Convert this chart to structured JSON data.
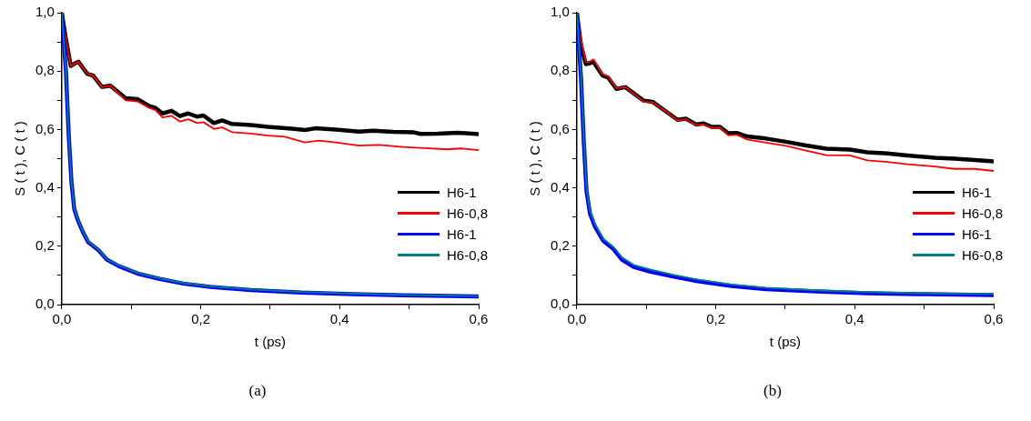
{
  "chart_data": [
    {
      "type": "line",
      "xlabel": "t (ps)",
      "ylabel": "S ( t ), C ( t )",
      "annotations": [
        "(a)"
      ],
      "xlim": [
        0,
        0.6
      ],
      "ylim": [
        0,
        1
      ],
      "xticks": [
        {
          "value": 0,
          "label": "0,0"
        },
        {
          "value": 0.1,
          "label": null
        },
        {
          "value": 0.2,
          "label": "0,2"
        },
        {
          "value": 0.3,
          "label": null
        },
        {
          "value": 0.4,
          "label": "0,4"
        },
        {
          "value": 0.5,
          "label": null
        },
        {
          "value": 0.6,
          "label": "0,6"
        }
      ],
      "yticks": [
        {
          "value": 0,
          "label": "0,0"
        },
        {
          "value": 0.1,
          "label": null
        },
        {
          "value": 0.2,
          "label": "0,2"
        },
        {
          "value": 0.3,
          "label": null
        },
        {
          "value": 0.4,
          "label": "0,4"
        },
        {
          "value": 0.5,
          "label": null
        },
        {
          "value": 0.6,
          "label": "0,6"
        },
        {
          "value": 0.7,
          "label": null
        },
        {
          "value": 0.8,
          "label": "0,8"
        },
        {
          "value": 0.9,
          "label": null
        },
        {
          "value": 1,
          "label": "1,0"
        }
      ],
      "grid": false,
      "legend": "right",
      "marker": "none",
      "line_style": "solid",
      "series": [
        {
          "name": "H6-1",
          "color": "#000000",
          "x": [
            0,
            0.006,
            0.013,
            0.019,
            0.024,
            0.037,
            0.045,
            0.058,
            0.07,
            0.092,
            0.109,
            0.126,
            0.135,
            0.145,
            0.158,
            0.17,
            0.182,
            0.195,
            0.204,
            0.219,
            0.231,
            0.245,
            0.272,
            0.297,
            0.331,
            0.35,
            0.365,
            0.394,
            0.428,
            0.448,
            0.477,
            0.507,
            0.516,
            0.541,
            0.57,
            0.6
          ],
          "values": [
            1.0,
            0.91,
            0.818,
            0.826,
            0.832,
            0.79,
            0.785,
            0.746,
            0.75,
            0.707,
            0.704,
            0.68,
            0.674,
            0.655,
            0.664,
            0.646,
            0.655,
            0.644,
            0.648,
            0.622,
            0.631,
            0.619,
            0.615,
            0.609,
            0.603,
            0.598,
            0.604,
            0.6,
            0.593,
            0.596,
            0.592,
            0.59,
            0.585,
            0.586,
            0.589,
            0.584
          ]
        },
        {
          "name": "H6-0,8",
          "color": "#ff0000",
          "x": [
            0,
            0.006,
            0.013,
            0.019,
            0.024,
            0.037,
            0.045,
            0.058,
            0.07,
            0.092,
            0.109,
            0.126,
            0.135,
            0.145,
            0.158,
            0.17,
            0.182,
            0.195,
            0.204,
            0.219,
            0.231,
            0.245,
            0.272,
            0.297,
            0.321,
            0.35,
            0.37,
            0.394,
            0.428,
            0.457,
            0.491,
            0.516,
            0.555,
            0.575,
            0.6
          ],
          "values": [
            1.0,
            0.91,
            0.818,
            0.826,
            0.832,
            0.79,
            0.785,
            0.745,
            0.75,
            0.7,
            0.696,
            0.674,
            0.666,
            0.641,
            0.647,
            0.627,
            0.635,
            0.622,
            0.625,
            0.602,
            0.607,
            0.591,
            0.586,
            0.579,
            0.575,
            0.556,
            0.562,
            0.556,
            0.545,
            0.547,
            0.54,
            0.537,
            0.532,
            0.535,
            0.529
          ]
        },
        {
          "name": "H6-1",
          "color": "#0000ff",
          "x": [
            0,
            0.006,
            0.01,
            0.014,
            0.018,
            0.023,
            0.031,
            0.038,
            0.053,
            0.065,
            0.082,
            0.097,
            0.111,
            0.141,
            0.175,
            0.214,
            0.272,
            0.345,
            0.419,
            0.492,
            0.6
          ],
          "values": [
            1.0,
            0.8,
            0.584,
            0.42,
            0.328,
            0.29,
            0.246,
            0.214,
            0.186,
            0.154,
            0.132,
            0.118,
            0.105,
            0.088,
            0.072,
            0.061,
            0.05,
            0.041,
            0.036,
            0.032,
            0.028
          ]
        },
        {
          "name": "H6-0,8",
          "color": "#008080",
          "x": [
            0,
            0.006,
            0.01,
            0.014,
            0.018,
            0.023,
            0.031,
            0.038,
            0.053,
            0.065,
            0.082,
            0.097,
            0.111,
            0.141,
            0.175,
            0.214,
            0.272,
            0.345,
            0.419,
            0.492,
            0.6
          ],
          "values": [
            1.0,
            0.8,
            0.586,
            0.422,
            0.33,
            0.292,
            0.248,
            0.216,
            0.188,
            0.156,
            0.134,
            0.12,
            0.107,
            0.09,
            0.074,
            0.063,
            0.052,
            0.043,
            0.038,
            0.033,
            0.029
          ]
        }
      ]
    },
    {
      "type": "line",
      "xlabel": "t (ps)",
      "ylabel": "S ( t ), C ( t )",
      "annotations": [
        "(b)"
      ],
      "xlim": [
        0,
        0.6
      ],
      "ylim": [
        0,
        1
      ],
      "xticks": [
        {
          "value": 0,
          "label": "0,0"
        },
        {
          "value": 0.1,
          "label": null
        },
        {
          "value": 0.2,
          "label": "0,2"
        },
        {
          "value": 0.3,
          "label": null
        },
        {
          "value": 0.4,
          "label": "0,4"
        },
        {
          "value": 0.5,
          "label": null
        },
        {
          "value": 0.6,
          "label": "0,6"
        }
      ],
      "yticks": [
        {
          "value": 0,
          "label": "0,0"
        },
        {
          "value": 0.1,
          "label": null
        },
        {
          "value": 0.2,
          "label": "0,2"
        },
        {
          "value": 0.3,
          "label": null
        },
        {
          "value": 0.4,
          "label": "0,4"
        },
        {
          "value": 0.5,
          "label": null
        },
        {
          "value": 0.6,
          "label": "0,6"
        },
        {
          "value": 0.7,
          "label": null
        },
        {
          "value": 0.8,
          "label": "0,8"
        },
        {
          "value": 0.9,
          "label": null
        },
        {
          "value": 1,
          "label": "1,0"
        }
      ],
      "grid": false,
      "legend": "right",
      "marker": "none",
      "line_style": "solid",
      "series": [
        {
          "name": "H6-1",
          "color": "#000000",
          "x": [
            0,
            0.006,
            0.013,
            0.018,
            0.024,
            0.037,
            0.045,
            0.057,
            0.07,
            0.096,
            0.109,
            0.126,
            0.145,
            0.157,
            0.172,
            0.182,
            0.194,
            0.206,
            0.218,
            0.23,
            0.245,
            0.272,
            0.301,
            0.33,
            0.359,
            0.393,
            0.418,
            0.447,
            0.476,
            0.515,
            0.544,
            0.573,
            0.6
          ],
          "values": [
            1.0,
            0.889,
            0.824,
            0.826,
            0.832,
            0.785,
            0.778,
            0.739,
            0.745,
            0.699,
            0.695,
            0.666,
            0.633,
            0.637,
            0.617,
            0.621,
            0.609,
            0.609,
            0.587,
            0.588,
            0.576,
            0.569,
            0.558,
            0.545,
            0.534,
            0.531,
            0.522,
            0.518,
            0.511,
            0.503,
            0.5,
            0.495,
            0.491
          ]
        },
        {
          "name": "H6-0,8",
          "color": "#ff0000",
          "x": [
            0,
            0.006,
            0.013,
            0.018,
            0.024,
            0.037,
            0.045,
            0.057,
            0.07,
            0.096,
            0.109,
            0.126,
            0.145,
            0.157,
            0.172,
            0.182,
            0.194,
            0.206,
            0.218,
            0.23,
            0.245,
            0.272,
            0.301,
            0.33,
            0.359,
            0.393,
            0.418,
            0.447,
            0.476,
            0.515,
            0.544,
            0.573,
            0.6
          ],
          "values": [
            1.0,
            0.91,
            0.832,
            0.832,
            0.84,
            0.79,
            0.782,
            0.742,
            0.745,
            0.695,
            0.693,
            0.666,
            0.631,
            0.635,
            0.614,
            0.617,
            0.605,
            0.607,
            0.58,
            0.582,
            0.566,
            0.555,
            0.544,
            0.528,
            0.512,
            0.511,
            0.494,
            0.489,
            0.481,
            0.473,
            0.465,
            0.465,
            0.458
          ]
        },
        {
          "name": "H6-1",
          "color": "#0000ff",
          "x": [
            0,
            0.006,
            0.01,
            0.014,
            0.019,
            0.026,
            0.038,
            0.053,
            0.065,
            0.082,
            0.106,
            0.14,
            0.174,
            0.223,
            0.272,
            0.345,
            0.418,
            0.491,
            0.6
          ],
          "values": [
            1.0,
            0.78,
            0.562,
            0.388,
            0.312,
            0.268,
            0.219,
            0.19,
            0.154,
            0.129,
            0.113,
            0.096,
            0.08,
            0.064,
            0.053,
            0.045,
            0.039,
            0.036,
            0.033
          ]
        },
        {
          "name": "H6-0,8",
          "color": "#008080",
          "x": [
            0,
            0.006,
            0.01,
            0.014,
            0.019,
            0.026,
            0.038,
            0.053,
            0.065,
            0.082,
            0.106,
            0.14,
            0.174,
            0.223,
            0.272,
            0.345,
            0.418,
            0.491,
            0.6
          ],
          "values": [
            1.0,
            0.79,
            0.575,
            0.4,
            0.322,
            0.276,
            0.226,
            0.197,
            0.162,
            0.136,
            0.12,
            0.102,
            0.086,
            0.069,
            0.058,
            0.049,
            0.043,
            0.039,
            0.036
          ]
        }
      ]
    }
  ]
}
